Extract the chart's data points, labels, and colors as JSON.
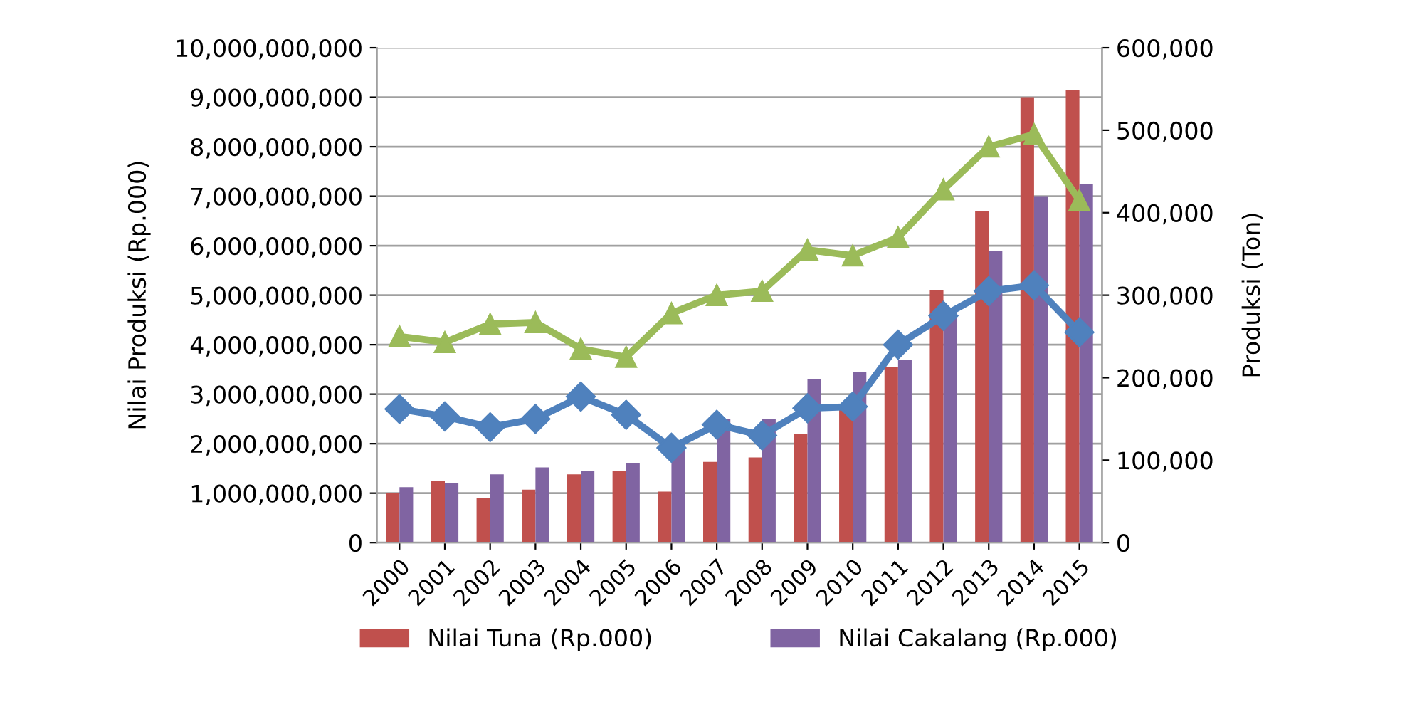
{
  "chart_data": {
    "type": "bar",
    "ylabel": "Nilai Produksi (Rp.000)",
    "y2label": "Produksi (Ton)",
    "categories": [
      "2000",
      "2001",
      "2002",
      "2003",
      "2004",
      "2005",
      "2006",
      "2007",
      "2008",
      "2009",
      "2010",
      "2011",
      "2012",
      "2013",
      "2014",
      "2015"
    ],
    "series": [
      {
        "name": "Nilai Tuna (Rp.000)",
        "color": "#c0504d",
        "values": [
          1000000000,
          1250000000,
          900000000,
          1070000000,
          1380000000,
          1450000000,
          1030000000,
          1630000000,
          1720000000,
          2200000000,
          2750000000,
          3550000000,
          5100000000,
          6700000000,
          9000000000,
          9150000000
        ]
      },
      {
        "name": "Nilai Cakalang (Rp.000)",
        "color": "#8064a2",
        "values": [
          1120000000,
          1200000000,
          1380000000,
          1520000000,
          1450000000,
          1600000000,
          2050000000,
          2500000000,
          2500000000,
          3300000000,
          3450000000,
          3700000000,
          4650000000,
          5900000000,
          7000000000,
          7250000000
        ]
      },
      {
        "type": "line",
        "axis": "y2",
        "color": "#9bbb59",
        "marker": "triangle",
        "values": [
          250000,
          243000,
          265000,
          267000,
          235000,
          225000,
          278000,
          300000,
          305000,
          355000,
          348000,
          370000,
          428000,
          480000,
          495000,
          415000
        ]
      },
      {
        "type": "line",
        "axis": "y2",
        "color": "#4f81bd",
        "marker": "diamond",
        "values": [
          162000,
          153000,
          140000,
          150000,
          177000,
          155000,
          115000,
          143000,
          130000,
          163000,
          165000,
          240000,
          275000,
          305000,
          312000,
          255000
        ]
      }
    ],
    "ylim": [
      0,
      10000000000
    ],
    "yticks": [
      0,
      {
        "value": 1000000000,
        "label": "1,000,000,000"
      },
      {
        "value": 2000000000,
        "label": "2,000,000,000"
      },
      {
        "value": 3000000000,
        "label": "3,000,000,000"
      },
      {
        "value": 4000000000,
        "label": "4,000,000,000"
      },
      {
        "value": 5000000000,
        "label": "5,000,000,000"
      },
      {
        "value": 6000000000,
        "label": "6,000,000,000"
      },
      {
        "value": 7000000000,
        "label": "7,000,000,000"
      },
      {
        "value": 8000000000,
        "label": "8,000,000,000"
      },
      {
        "value": 9000000000,
        "label": "9,000,000,000"
      },
      {
        "value": 10000000000,
        "label": "10,000,000,000"
      }
    ],
    "y2lim": [
      0,
      600000
    ],
    "y2ticks": [
      0,
      {
        "value": 100000,
        "label": "100,000"
      },
      {
        "value": 200000,
        "label": "200,000"
      },
      {
        "value": 300000,
        "label": "300,000"
      },
      {
        "value": 400000,
        "label": "400,000"
      },
      {
        "value": 500000,
        "label": "500,000"
      },
      {
        "value": 600000,
        "label": "600,000"
      }
    ],
    "grid": "y",
    "legend": "bottom"
  }
}
